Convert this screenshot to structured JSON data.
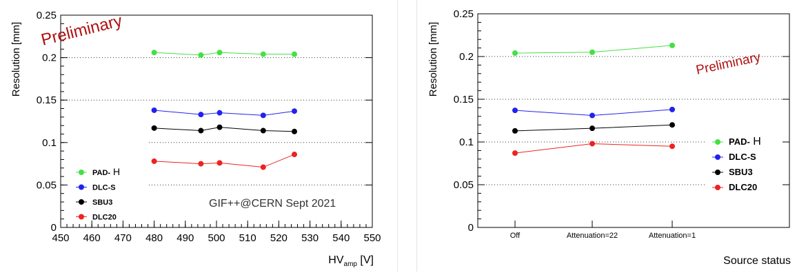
{
  "chart_data": [
    {
      "type": "line",
      "xlabel_main": "HV",
      "xlabel_sub": "amp",
      "xlabel_unit": " [V]",
      "ylabel": "Resolution [mm]",
      "xlim": [
        450,
        550
      ],
      "ylim": [
        0,
        0.25
      ],
      "xticks": [
        450,
        460,
        470,
        480,
        490,
        500,
        510,
        520,
        530,
        540,
        550
      ],
      "yticks": [
        0,
        0.05,
        0.1,
        0.15,
        0.2,
        0.25
      ],
      "ytick_labels": [
        "0",
        "0.05",
        "0.1",
        "0.15",
        "0.2",
        "0.25"
      ],
      "grid": "horizontal dotted",
      "legend_position": "bottom-left",
      "x": [
        480,
        495,
        501,
        515,
        525
      ],
      "series": [
        {
          "name_bold": "PAD-",
          "name_plain": " H",
          "color": "#44e044",
          "values": [
            0.206,
            0.203,
            0.206,
            0.204,
            0.204
          ]
        },
        {
          "name_bold": "DLC-S",
          "name_plain": "",
          "color": "#2222ee",
          "values": [
            0.138,
            0.133,
            0.135,
            0.132,
            0.137
          ]
        },
        {
          "name_bold": "SBU3",
          "name_plain": "",
          "color": "#000000",
          "values": [
            0.117,
            0.114,
            0.118,
            0.114,
            0.113
          ]
        },
        {
          "name_bold": "DLC20",
          "name_plain": "",
          "color": "#ee2222",
          "values": [
            0.078,
            0.075,
            0.076,
            0.071,
            0.086
          ]
        }
      ],
      "annotations": {
        "preliminary": "Preliminary",
        "campaign": "GIF++@CERN Sept 2021"
      }
    },
    {
      "type": "line",
      "xlabel": "Source status",
      "ylabel": "Resolution [mm]",
      "categories": [
        "Off",
        "Attenuation=22",
        "Attenuation=1"
      ],
      "ylim": [
        0,
        0.25
      ],
      "yticks": [
        0,
        0.05,
        0.1,
        0.15,
        0.2,
        0.25
      ],
      "ytick_labels": [
        "0",
        "0.05",
        "0.1",
        "0.15",
        "0.2",
        "0.25"
      ],
      "grid": "horizontal dotted",
      "legend_position": "right",
      "series": [
        {
          "name_bold": "PAD-",
          "name_plain": " H",
          "color": "#44e044",
          "values": [
            0.204,
            0.205,
            0.213
          ]
        },
        {
          "name_bold": "DLC-S",
          "name_plain": "",
          "color": "#2222ee",
          "values": [
            0.137,
            0.131,
            0.138
          ]
        },
        {
          "name_bold": "SBU3",
          "name_plain": "",
          "color": "#000000",
          "values": [
            0.113,
            0.116,
            0.12
          ]
        },
        {
          "name_bold": "DLC20",
          "name_plain": "",
          "color": "#ee2222",
          "values": [
            0.087,
            0.098,
            0.095
          ]
        }
      ],
      "annotations": {
        "preliminary": "Preliminary"
      }
    }
  ]
}
